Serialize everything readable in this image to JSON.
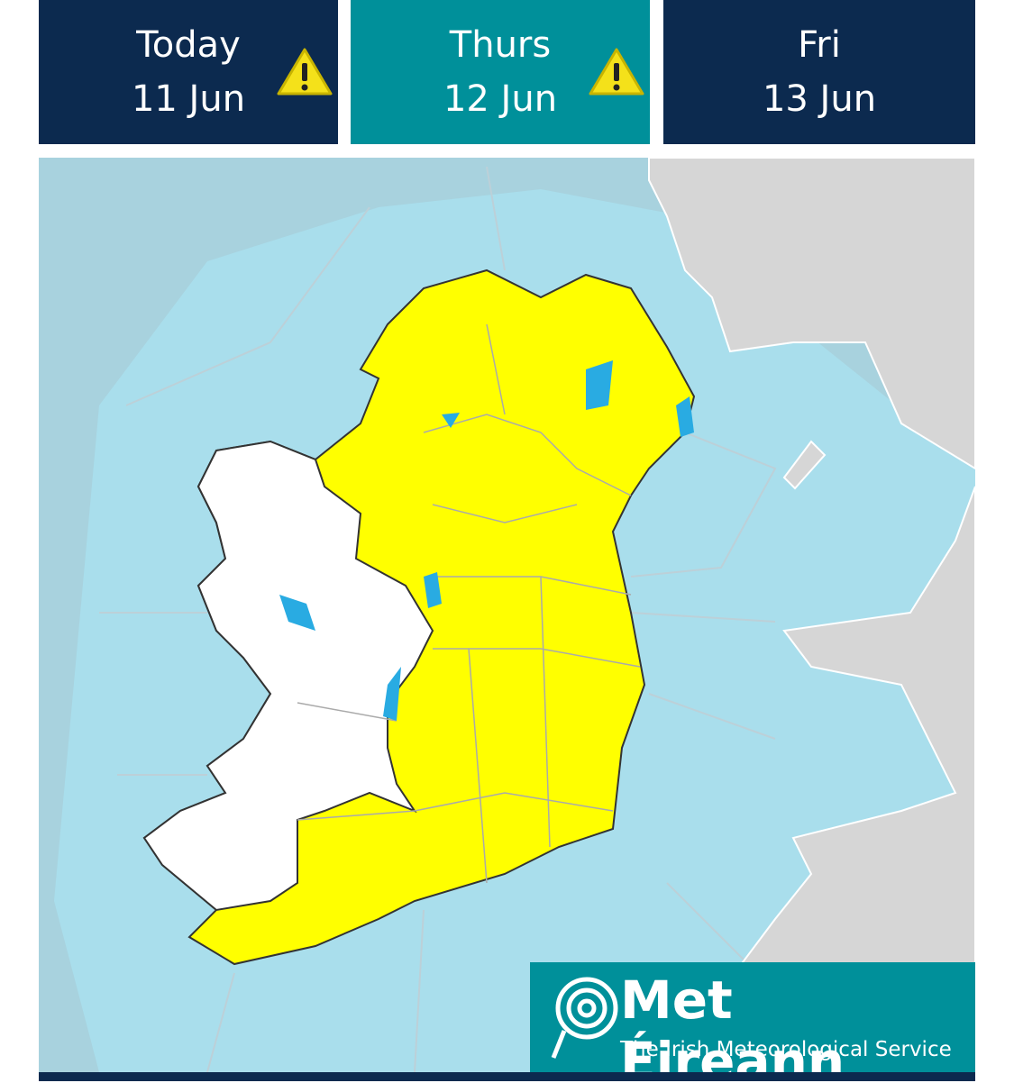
{
  "tabs": [
    {
      "day": "Today",
      "date": "11 Jun",
      "warning": true,
      "selected": false
    },
    {
      "day": "Thurs",
      "date": "12 Jun",
      "warning": true,
      "selected": true
    },
    {
      "day": "Fri",
      "date": "13 Jun",
      "warning": false,
      "selected": false
    }
  ],
  "logo": {
    "title": "Met Éireann",
    "subtitle": "The Irish Meteorological Service"
  }
}
